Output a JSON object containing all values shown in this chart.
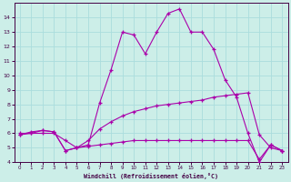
{
  "xlabel": "Windchill (Refroidissement éolien,°C)",
  "bg_color": "#cceee8",
  "grid_color": "#aadddd",
  "line_color": "#aa00aa",
  "x_values": [
    0,
    1,
    2,
    3,
    4,
    5,
    6,
    7,
    8,
    9,
    10,
    11,
    12,
    13,
    14,
    15,
    16,
    17,
    18,
    19,
    20,
    21,
    22,
    23
  ],
  "line_flat": [
    6.0,
    6.0,
    6.0,
    6.0,
    5.5,
    5.0,
    5.1,
    5.2,
    5.3,
    5.4,
    5.5,
    5.5,
    5.5,
    5.5,
    5.5,
    5.5,
    5.5,
    5.5,
    5.5,
    5.5,
    5.5,
    4.2,
    5.2,
    4.8
  ],
  "line_ramp": [
    5.9,
    6.1,
    6.2,
    6.1,
    4.8,
    5.0,
    5.5,
    6.3,
    6.8,
    7.2,
    7.5,
    7.7,
    7.9,
    8.0,
    8.1,
    8.2,
    8.3,
    8.5,
    8.6,
    8.7,
    8.8,
    5.9,
    5.0,
    4.8
  ],
  "line_peak": [
    5.9,
    6.0,
    6.2,
    6.1,
    4.8,
    5.0,
    5.2,
    8.1,
    10.4,
    13.0,
    12.8,
    11.5,
    13.0,
    14.3,
    14.6,
    13.0,
    13.0,
    11.8,
    9.7,
    8.5,
    6.0,
    4.0,
    5.2,
    4.8
  ],
  "ylim": [
    4,
    15
  ],
  "yticks": [
    4,
    5,
    6,
    7,
    8,
    9,
    10,
    11,
    12,
    13,
    14
  ],
  "xlim": [
    -0.5,
    23.5
  ],
  "xticks": [
    0,
    1,
    2,
    3,
    4,
    5,
    6,
    7,
    8,
    9,
    10,
    11,
    12,
    13,
    14,
    15,
    16,
    17,
    18,
    19,
    20,
    21,
    22,
    23
  ],
  "figsize": [
    3.2,
    2.0
  ],
  "dpi": 100
}
